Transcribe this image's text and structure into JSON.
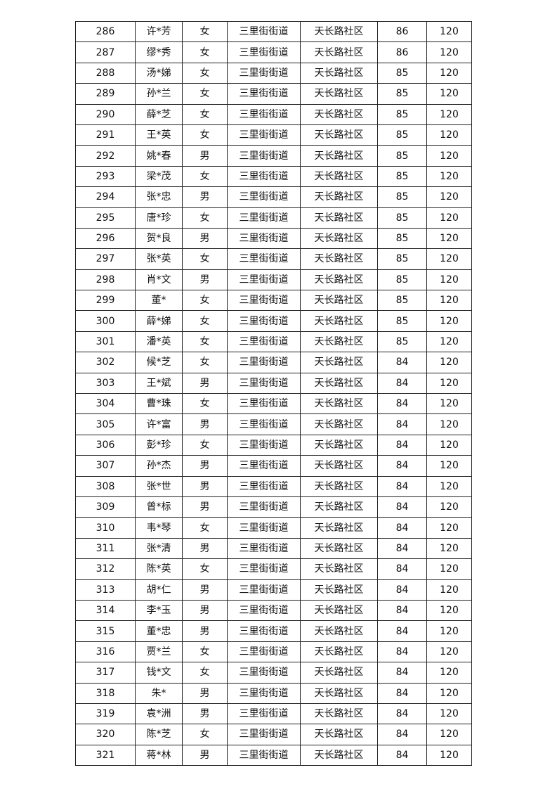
{
  "table": {
    "rows": [
      [
        "286",
        "许*芳",
        "女",
        "三里街街道",
        "天长路社区",
        "86",
        "120"
      ],
      [
        "287",
        "缪*秀",
        "女",
        "三里街街道",
        "天长路社区",
        "86",
        "120"
      ],
      [
        "288",
        "汤*娣",
        "女",
        "三里街街道",
        "天长路社区",
        "85",
        "120"
      ],
      [
        "289",
        "孙*兰",
        "女",
        "三里街街道",
        "天长路社区",
        "85",
        "120"
      ],
      [
        "290",
        "薛*芝",
        "女",
        "三里街街道",
        "天长路社区",
        "85",
        "120"
      ],
      [
        "291",
        "王*英",
        "女",
        "三里街街道",
        "天长路社区",
        "85",
        "120"
      ],
      [
        "292",
        "姚*春",
        "男",
        "三里街街道",
        "天长路社区",
        "85",
        "120"
      ],
      [
        "293",
        "梁*茂",
        "女",
        "三里街街道",
        "天长路社区",
        "85",
        "120"
      ],
      [
        "294",
        "张*忠",
        "男",
        "三里街街道",
        "天长路社区",
        "85",
        "120"
      ],
      [
        "295",
        "唐*珍",
        "女",
        "三里街街道",
        "天长路社区",
        "85",
        "120"
      ],
      [
        "296",
        "贺*良",
        "男",
        "三里街街道",
        "天长路社区",
        "85",
        "120"
      ],
      [
        "297",
        "张*英",
        "女",
        "三里街街道",
        "天长路社区",
        "85",
        "120"
      ],
      [
        "298",
        "肖*文",
        "男",
        "三里街街道",
        "天长路社区",
        "85",
        "120"
      ],
      [
        "299",
        "董*",
        "女",
        "三里街街道",
        "天长路社区",
        "85",
        "120"
      ],
      [
        "300",
        "薛*娣",
        "女",
        "三里街街道",
        "天长路社区",
        "85",
        "120"
      ],
      [
        "301",
        "潘*英",
        "女",
        "三里街街道",
        "天长路社区",
        "85",
        "120"
      ],
      [
        "302",
        "候*芝",
        "女",
        "三里街街道",
        "天长路社区",
        "84",
        "120"
      ],
      [
        "303",
        "王*斌",
        "男",
        "三里街街道",
        "天长路社区",
        "84",
        "120"
      ],
      [
        "304",
        "曹*珠",
        "女",
        "三里街街道",
        "天长路社区",
        "84",
        "120"
      ],
      [
        "305",
        "许*富",
        "男",
        "三里街街道",
        "天长路社区",
        "84",
        "120"
      ],
      [
        "306",
        "彭*珍",
        "女",
        "三里街街道",
        "天长路社区",
        "84",
        "120"
      ],
      [
        "307",
        "孙*杰",
        "男",
        "三里街街道",
        "天长路社区",
        "84",
        "120"
      ],
      [
        "308",
        "张*世",
        "男",
        "三里街街道",
        "天长路社区",
        "84",
        "120"
      ],
      [
        "309",
        "曾*标",
        "男",
        "三里街街道",
        "天长路社区",
        "84",
        "120"
      ],
      [
        "310",
        "韦*琴",
        "女",
        "三里街街道",
        "天长路社区",
        "84",
        "120"
      ],
      [
        "311",
        "张*清",
        "男",
        "三里街街道",
        "天长路社区",
        "84",
        "120"
      ],
      [
        "312",
        "陈*英",
        "女",
        "三里街街道",
        "天长路社区",
        "84",
        "120"
      ],
      [
        "313",
        "胡*仁",
        "男",
        "三里街街道",
        "天长路社区",
        "84",
        "120"
      ],
      [
        "314",
        "李*玉",
        "男",
        "三里街街道",
        "天长路社区",
        "84",
        "120"
      ],
      [
        "315",
        "董*忠",
        "男",
        "三里街街道",
        "天长路社区",
        "84",
        "120"
      ],
      [
        "316",
        "贾*兰",
        "女",
        "三里街街道",
        "天长路社区",
        "84",
        "120"
      ],
      [
        "317",
        "钱*文",
        "女",
        "三里街街道",
        "天长路社区",
        "84",
        "120"
      ],
      [
        "318",
        "朱*",
        "男",
        "三里街街道",
        "天长路社区",
        "84",
        "120"
      ],
      [
        "319",
        "袁*洲",
        "男",
        "三里街街道",
        "天长路社区",
        "84",
        "120"
      ],
      [
        "320",
        "陈*芝",
        "女",
        "三里街街道",
        "天长路社区",
        "84",
        "120"
      ],
      [
        "321",
        "蒋*林",
        "男",
        "三里街街道",
        "天长路社区",
        "84",
        "120"
      ]
    ]
  }
}
